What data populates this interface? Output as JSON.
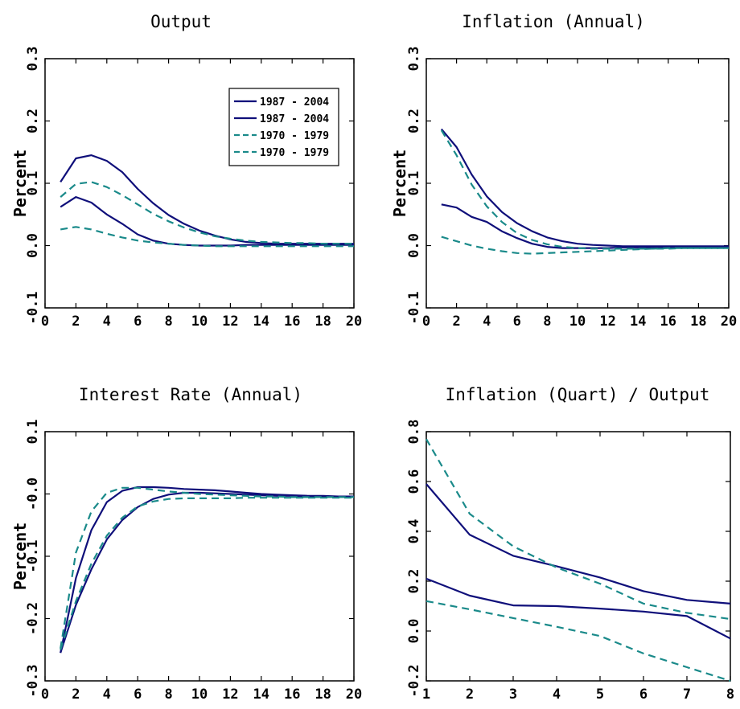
{
  "colors": {
    "series_solid": "#0f0f7a",
    "series_dashed": "#1a8a8a",
    "axis": "#000000"
  },
  "chart_data": [
    {
      "type": "line",
      "title": "Output",
      "ylabel": "Percent",
      "xlim": [
        0,
        20
      ],
      "ylim": [
        -0.1,
        0.3
      ],
      "xticks": [
        0,
        2,
        4,
        6,
        8,
        10,
        12,
        14,
        16,
        18,
        20
      ],
      "xtick_labels": [
        "0",
        "2",
        "4",
        "6",
        "8",
        "10",
        "12",
        "14",
        "16",
        "18",
        "20"
      ],
      "yticks": [
        -0.1,
        0.0,
        0.1,
        0.2,
        0.3
      ],
      "ytick_labels": [
        "-0.1",
        "0.0",
        "0.1",
        "0.2",
        "0.3"
      ],
      "legend": {
        "location": "top-right",
        "entries": [
          "1987 - 2004",
          "1987 - 2004",
          "1970 - 1979",
          "1970 - 1979"
        ]
      },
      "series": [
        {
          "name": "1987 - 2004",
          "style": "solid",
          "x": [
            1,
            2,
            3,
            4,
            5,
            6,
            7,
            8,
            9,
            10,
            11,
            12,
            13,
            14,
            15,
            16,
            17,
            18,
            19,
            20
          ],
          "values": [
            0.102,
            0.14,
            0.145,
            0.136,
            0.118,
            0.091,
            0.068,
            0.049,
            0.035,
            0.024,
            0.016,
            0.01,
            0.006,
            0.004,
            0.003,
            0.003,
            0.003,
            0.003,
            0.003,
            0.003
          ]
        },
        {
          "name": "1987 - 2004",
          "style": "solid",
          "x": [
            1,
            2,
            3,
            4,
            5,
            6,
            7,
            8,
            9,
            10,
            11,
            12,
            13,
            14,
            15,
            16,
            17,
            18,
            19,
            20
          ],
          "values": [
            0.062,
            0.078,
            0.069,
            0.05,
            0.035,
            0.018,
            0.008,
            0.003,
            0.001,
            0.0,
            0.0,
            0.0,
            0.001,
            0.001,
            0.001,
            0.001,
            0.001,
            0.001,
            0.001,
            0.001
          ]
        },
        {
          "name": "1970 - 1979",
          "style": "dashed",
          "x": [
            1,
            2,
            3,
            4,
            5,
            6,
            7,
            8,
            9,
            10,
            11,
            12,
            13,
            14,
            15,
            16,
            17,
            18,
            19,
            20
          ],
          "values": [
            0.078,
            0.099,
            0.102,
            0.094,
            0.081,
            0.066,
            0.051,
            0.039,
            0.029,
            0.021,
            0.015,
            0.011,
            0.008,
            0.006,
            0.005,
            0.004,
            0.004,
            0.003,
            0.003,
            0.003
          ]
        },
        {
          "name": "1970 - 1979",
          "style": "dashed",
          "x": [
            1,
            2,
            3,
            4,
            5,
            6,
            7,
            8,
            9,
            10,
            11,
            12,
            13,
            14,
            15,
            16,
            17,
            18,
            19,
            20
          ],
          "values": [
            0.026,
            0.03,
            0.026,
            0.019,
            0.013,
            0.008,
            0.005,
            0.003,
            0.001,
            0.0,
            -0.001,
            -0.001,
            -0.001,
            -0.001,
            -0.001,
            -0.001,
            -0.001,
            -0.001,
            -0.001,
            -0.001
          ]
        }
      ]
    },
    {
      "type": "line",
      "title": "Inflation (Annual)",
      "ylabel": "Percent",
      "xlim": [
        0,
        20
      ],
      "ylim": [
        -0.1,
        0.3
      ],
      "xticks": [
        0,
        2,
        4,
        6,
        8,
        10,
        12,
        14,
        16,
        18,
        20
      ],
      "xtick_labels": [
        "0",
        "2",
        "4",
        "6",
        "8",
        "10",
        "12",
        "14",
        "16",
        "18",
        "20"
      ],
      "yticks": [
        -0.1,
        0.0,
        0.1,
        0.2,
        0.3
      ],
      "ytick_labels": [
        "-0.1",
        "0.0",
        "0.1",
        "0.2",
        "0.3"
      ],
      "series": [
        {
          "name": "1987 - 2004",
          "style": "solid",
          "x": [
            1,
            2,
            3,
            4,
            5,
            6,
            7,
            8,
            9,
            10,
            11,
            12,
            13,
            14,
            15,
            16,
            17,
            18,
            19,
            20
          ],
          "values": [
            0.187,
            0.158,
            0.114,
            0.079,
            0.054,
            0.036,
            0.023,
            0.013,
            0.007,
            0.003,
            0.001,
            0.0,
            -0.001,
            -0.001,
            -0.001,
            -0.001,
            -0.001,
            -0.001,
            -0.001,
            -0.001
          ]
        },
        {
          "name": "1987 - 2004",
          "style": "solid",
          "x": [
            1,
            2,
            3,
            4,
            5,
            6,
            7,
            8,
            9,
            10,
            11,
            12,
            13,
            14,
            15,
            16,
            17,
            18,
            19,
            20
          ],
          "values": [
            0.066,
            0.061,
            0.046,
            0.038,
            0.023,
            0.012,
            0.003,
            -0.002,
            -0.004,
            -0.004,
            -0.004,
            -0.004,
            -0.003,
            -0.003,
            -0.003,
            -0.003,
            -0.003,
            -0.002,
            -0.002,
            -0.002
          ]
        },
        {
          "name": "1970 - 1979",
          "style": "dashed",
          "x": [
            1,
            2,
            3,
            4,
            5,
            6,
            7,
            8,
            9,
            10,
            11,
            12,
            13,
            14,
            15,
            16,
            17,
            18,
            19,
            20
          ],
          "values": [
            0.185,
            0.145,
            0.098,
            0.063,
            0.038,
            0.02,
            0.009,
            0.002,
            -0.002,
            -0.004,
            -0.005,
            -0.005,
            -0.005,
            -0.005,
            -0.005,
            -0.004,
            -0.004,
            -0.004,
            -0.004,
            -0.004
          ]
        },
        {
          "name": "1970 - 1979",
          "style": "dashed",
          "x": [
            1,
            2,
            3,
            4,
            5,
            6,
            7,
            8,
            9,
            10,
            11,
            12,
            13,
            14,
            15,
            16,
            17,
            18,
            19,
            20
          ],
          "values": [
            0.014,
            0.007,
            0.0,
            -0.005,
            -0.009,
            -0.012,
            -0.013,
            -0.012,
            -0.011,
            -0.01,
            -0.009,
            -0.008,
            -0.007,
            -0.006,
            -0.005,
            -0.005,
            -0.004,
            -0.004,
            -0.004,
            -0.004
          ]
        }
      ]
    },
    {
      "type": "line",
      "title": "Interest Rate (Annual)",
      "ylabel": "Percent",
      "xlim": [
        0,
        20
      ],
      "ylim": [
        -0.3,
        0.1
      ],
      "xticks": [
        0,
        2,
        4,
        6,
        8,
        10,
        12,
        14,
        16,
        18,
        20
      ],
      "xtick_labels": [
        "0",
        "2",
        "4",
        "6",
        "8",
        "10",
        "12",
        "14",
        "16",
        "18",
        "20"
      ],
      "yticks": [
        -0.3,
        -0.2,
        -0.1,
        0.0,
        0.1
      ],
      "ytick_labels": [
        "-0.3",
        "-0.2",
        "-0.1",
        "-0.0",
        "0.1"
      ],
      "series": [
        {
          "name": "1987 - 2004",
          "style": "solid",
          "x": [
            1,
            2,
            3,
            4,
            5,
            6,
            7,
            8,
            9,
            10,
            11,
            12,
            13,
            14,
            15,
            16,
            17,
            18,
            19,
            20
          ],
          "values": [
            -0.255,
            -0.135,
            -0.058,
            -0.013,
            0.005,
            0.011,
            0.011,
            0.01,
            0.008,
            0.007,
            0.006,
            0.004,
            0.002,
            0.0,
            -0.001,
            -0.002,
            -0.003,
            -0.003,
            -0.004,
            -0.004
          ]
        },
        {
          "name": "1987 - 2004",
          "style": "solid",
          "x": [
            1,
            2,
            3,
            4,
            5,
            6,
            7,
            8,
            9,
            10,
            11,
            12,
            13,
            14,
            15,
            16,
            17,
            18,
            19,
            20
          ],
          "values": [
            -0.255,
            -0.178,
            -0.121,
            -0.073,
            -0.042,
            -0.021,
            -0.008,
            -0.001,
            0.002,
            0.002,
            0.001,
            0.0,
            -0.001,
            -0.002,
            -0.003,
            -0.003,
            -0.004,
            -0.004,
            -0.004,
            -0.004
          ]
        },
        {
          "name": "1970 - 1979",
          "style": "dashed",
          "x": [
            1,
            2,
            3,
            4,
            5,
            6,
            7,
            8,
            9,
            10,
            11,
            12,
            13,
            14,
            15,
            16,
            17,
            18,
            19,
            20
          ],
          "values": [
            -0.248,
            -0.094,
            -0.028,
            0.002,
            0.01,
            0.01,
            0.007,
            0.004,
            0.002,
            0.0,
            -0.001,
            -0.002,
            -0.003,
            -0.004,
            -0.004,
            -0.005,
            -0.005,
            -0.005,
            -0.005,
            -0.005
          ]
        },
        {
          "name": "1970 - 1979",
          "style": "dashed",
          "x": [
            1,
            2,
            3,
            4,
            5,
            6,
            7,
            8,
            9,
            10,
            11,
            12,
            13,
            14,
            15,
            16,
            17,
            18,
            19,
            20
          ],
          "values": [
            -0.25,
            -0.172,
            -0.112,
            -0.067,
            -0.038,
            -0.02,
            -0.012,
            -0.008,
            -0.007,
            -0.007,
            -0.007,
            -0.007,
            -0.006,
            -0.006,
            -0.006,
            -0.006,
            -0.006,
            -0.006,
            -0.006,
            -0.006
          ]
        }
      ]
    },
    {
      "type": "line",
      "title": "Inflation (Quart) / Output",
      "ylabel": "",
      "xlim": [
        1,
        8
      ],
      "ylim": [
        -0.2,
        0.8
      ],
      "xticks": [
        1,
        2,
        3,
        4,
        5,
        6,
        7,
        8
      ],
      "xtick_labels": [
        "1",
        "2",
        "3",
        "4",
        "5",
        "6",
        "7",
        "8"
      ],
      "yticks": [
        -0.2,
        0.0,
        0.2,
        0.4,
        0.6,
        0.8
      ],
      "ytick_labels": [
        "-0.2",
        "0.0",
        "0.2",
        "0.4",
        "0.6",
        "0.8"
      ],
      "series": [
        {
          "name": "1987 - 2004",
          "style": "solid",
          "x": [
            1,
            2,
            3,
            4,
            5,
            6,
            7,
            8
          ],
          "values": [
            0.59,
            0.386,
            0.302,
            0.26,
            0.215,
            0.16,
            0.125,
            0.11
          ]
        },
        {
          "name": "1987 - 2004",
          "style": "solid",
          "x": [
            1,
            2,
            3,
            4,
            5,
            6,
            7,
            8
          ],
          "values": [
            0.21,
            0.142,
            0.103,
            0.1,
            0.09,
            0.078,
            0.06,
            -0.03
          ]
        },
        {
          "name": "1970 - 1979",
          "style": "dashed",
          "x": [
            1,
            2,
            3,
            4,
            5,
            6,
            7,
            8
          ],
          "values": [
            0.77,
            0.47,
            0.34,
            0.255,
            0.19,
            0.11,
            0.073,
            0.048
          ]
        },
        {
          "name": "1970 - 1979",
          "style": "dashed",
          "x": [
            1,
            2,
            3,
            4,
            5,
            6,
            7,
            8
          ],
          "values": [
            0.12,
            0.087,
            0.052,
            0.017,
            -0.02,
            -0.09,
            -0.145,
            -0.2
          ]
        }
      ]
    }
  ]
}
